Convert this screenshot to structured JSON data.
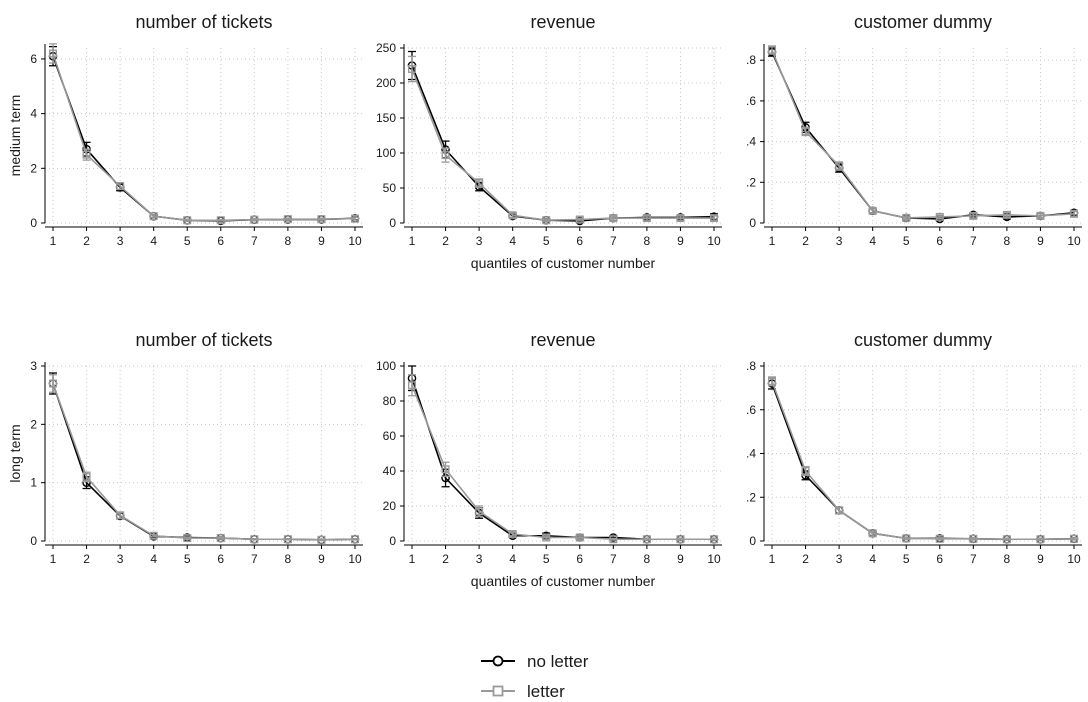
{
  "chart_data": [
    {
      "type": "line",
      "title": "number of tickets",
      "row_label": "medium term",
      "xlabel": "",
      "x": [
        1,
        2,
        3,
        4,
        5,
        6,
        7,
        8,
        9,
        10
      ],
      "ylim": [
        0,
        6.4
      ],
      "yticks": [
        0,
        2,
        4,
        6
      ],
      "ytick_labels": [
        "0",
        "2",
        "4",
        "6"
      ],
      "grid": true,
      "series": [
        {
          "name": "no letter",
          "color": "#000000",
          "marker": "circle",
          "values": [
            6.1,
            2.7,
            1.3,
            0.25,
            0.1,
            0.08,
            0.12,
            0.13,
            0.13,
            0.17
          ],
          "err": [
            0.35,
            0.25,
            0.12,
            0.05,
            0.03,
            0.03,
            0.04,
            0.04,
            0.04,
            0.05
          ]
        },
        {
          "name": "letter",
          "color": "#999999",
          "marker": "square",
          "values": [
            6.2,
            2.5,
            1.35,
            0.25,
            0.1,
            0.1,
            0.12,
            0.14,
            0.14,
            0.16
          ],
          "err": [
            0.35,
            0.2,
            0.12,
            0.05,
            0.03,
            0.03,
            0.04,
            0.04,
            0.04,
            0.05
          ]
        }
      ]
    },
    {
      "type": "line",
      "title": "revenue",
      "row_label": "",
      "xlabel": "quantiles of customer number",
      "x": [
        1,
        2,
        3,
        4,
        5,
        6,
        7,
        8,
        9,
        10
      ],
      "ylim": [
        0,
        250
      ],
      "yticks": [
        0,
        50,
        100,
        150,
        200,
        250
      ],
      "ytick_labels": [
        "0",
        "50",
        "100",
        "150",
        "200",
        "250"
      ],
      "grid": true,
      "series": [
        {
          "name": "no letter",
          "color": "#000000",
          "marker": "circle",
          "values": [
            225,
            105,
            52,
            10,
            4,
            3,
            7,
            8,
            8,
            9
          ],
          "err": [
            20,
            12,
            6,
            3,
            2,
            2,
            3,
            3,
            3,
            4
          ]
        },
        {
          "name": "letter",
          "color": "#999999",
          "marker": "square",
          "values": [
            220,
            97,
            57,
            11,
            4,
            5,
            7,
            7,
            7,
            7
          ],
          "err": [
            18,
            10,
            6,
            3,
            2,
            2,
            3,
            3,
            3,
            3
          ]
        }
      ]
    },
    {
      "type": "line",
      "title": "customer dummy",
      "row_label": "",
      "xlabel": "",
      "x": [
        1,
        2,
        3,
        4,
        5,
        6,
        7,
        8,
        9,
        10
      ],
      "ylim": [
        0,
        0.86
      ],
      "yticks": [
        0,
        0.2,
        0.4,
        0.6,
        0.8
      ],
      "ytick_labels": [
        "0",
        ".2",
        ".4",
        ".6",
        ".8"
      ],
      "grid": true,
      "series": [
        {
          "name": "no letter",
          "color": "#000000",
          "marker": "circle",
          "values": [
            0.84,
            0.47,
            0.27,
            0.06,
            0.025,
            0.02,
            0.04,
            0.03,
            0.035,
            0.05
          ],
          "err": [
            0.02,
            0.025,
            0.02,
            0.01,
            0.008,
            0.008,
            0.01,
            0.01,
            0.01,
            0.012
          ]
        },
        {
          "name": "letter",
          "color": "#999999",
          "marker": "square",
          "values": [
            0.85,
            0.45,
            0.28,
            0.06,
            0.025,
            0.03,
            0.035,
            0.04,
            0.035,
            0.045
          ],
          "err": [
            0.02,
            0.02,
            0.02,
            0.01,
            0.008,
            0.008,
            0.01,
            0.01,
            0.01,
            0.012
          ]
        }
      ]
    },
    {
      "type": "line",
      "title": "number of tickets",
      "row_label": "long term",
      "xlabel": "",
      "x": [
        1,
        2,
        3,
        4,
        5,
        6,
        7,
        8,
        9,
        10
      ],
      "ylim": [
        0,
        3
      ],
      "yticks": [
        0,
        1,
        2,
        3
      ],
      "ytick_labels": [
        "0",
        "1",
        "2",
        "3"
      ],
      "grid": true,
      "series": [
        {
          "name": "no letter",
          "color": "#000000",
          "marker": "circle",
          "values": [
            2.7,
            1.0,
            0.43,
            0.08,
            0.06,
            0.05,
            0.03,
            0.03,
            0.02,
            0.03
          ],
          "err": [
            0.18,
            0.1,
            0.05,
            0.02,
            0.02,
            0.02,
            0.01,
            0.01,
            0.01,
            0.01
          ]
        },
        {
          "name": "letter",
          "color": "#999999",
          "marker": "square",
          "values": [
            2.7,
            1.1,
            0.44,
            0.09,
            0.05,
            0.05,
            0.03,
            0.03,
            0.02,
            0.03
          ],
          "err": [
            0.15,
            0.08,
            0.05,
            0.02,
            0.02,
            0.02,
            0.01,
            0.01,
            0.01,
            0.01
          ]
        }
      ]
    },
    {
      "type": "line",
      "title": "revenue",
      "row_label": "",
      "xlabel": "quantiles of customer number",
      "x": [
        1,
        2,
        3,
        4,
        5,
        6,
        7,
        8,
        9,
        10
      ],
      "ylim": [
        0,
        100
      ],
      "yticks": [
        0,
        20,
        40,
        60,
        80,
        100
      ],
      "ytick_labels": [
        "0",
        "20",
        "40",
        "60",
        "80",
        "100"
      ],
      "grid": true,
      "series": [
        {
          "name": "no letter",
          "color": "#000000",
          "marker": "circle",
          "values": [
            93,
            36,
            16,
            3,
            3,
            2,
            2,
            1,
            1,
            1
          ],
          "err": [
            7,
            5,
            3,
            1,
            1.5,
            1,
            1,
            0.5,
            0.5,
            0.5
          ]
        },
        {
          "name": "letter",
          "color": "#999999",
          "marker": "square",
          "values": [
            89,
            41,
            17,
            4,
            2,
            2,
            1,
            1,
            1,
            1
          ],
          "err": [
            6,
            4,
            3,
            1,
            1,
            1,
            0.5,
            0.5,
            0.5,
            0.5
          ]
        }
      ]
    },
    {
      "type": "line",
      "title": "customer dummy",
      "row_label": "",
      "xlabel": "",
      "x": [
        1,
        2,
        3,
        4,
        5,
        6,
        7,
        8,
        9,
        10
      ],
      "ylim": [
        0,
        0.8
      ],
      "yticks": [
        0,
        0.2,
        0.4,
        0.6,
        0.8
      ],
      "ytick_labels": [
        "0",
        ".2",
        ".4",
        ".6",
        ".8"
      ],
      "grid": true,
      "series": [
        {
          "name": "no letter",
          "color": "#000000",
          "marker": "circle",
          "values": [
            0.72,
            0.3,
            0.14,
            0.035,
            0.012,
            0.012,
            0.01,
            0.008,
            0.008,
            0.01
          ],
          "err": [
            0.025,
            0.02,
            0.015,
            0.008,
            0.005,
            0.005,
            0.004,
            0.004,
            0.004,
            0.004
          ]
        },
        {
          "name": "letter",
          "color": "#999999",
          "marker": "square",
          "values": [
            0.73,
            0.32,
            0.14,
            0.035,
            0.012,
            0.01,
            0.01,
            0.008,
            0.008,
            0.01
          ],
          "err": [
            0.02,
            0.02,
            0.015,
            0.008,
            0.005,
            0.005,
            0.004,
            0.004,
            0.004,
            0.004
          ]
        }
      ]
    }
  ],
  "legend": {
    "placement": "bottom-center",
    "items": [
      {
        "label": "no letter",
        "color": "#000000",
        "marker": "circle"
      },
      {
        "label": "letter",
        "color": "#999999",
        "marker": "square"
      }
    ]
  }
}
